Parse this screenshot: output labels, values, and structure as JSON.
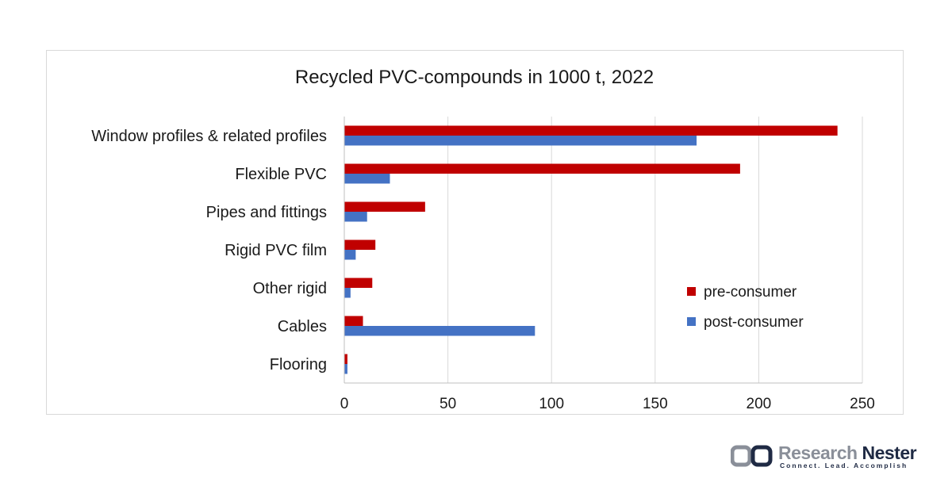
{
  "chart_data": {
    "type": "bar",
    "orientation": "horizontal",
    "title": "Recycled PVC-compounds in 1000 t, 2022",
    "xlabel": "",
    "ylabel": "",
    "xlim": [
      0,
      250
    ],
    "x_ticks": [
      "0",
      "50",
      "100",
      "150",
      "200",
      "250"
    ],
    "categories": [
      "Window profiles & related profiles",
      "Flexible PVC",
      "Pipes and fittings",
      "Rigid PVC film",
      "Other rigid",
      "Cables",
      "Flooring"
    ],
    "series": [
      {
        "name": "pre-consumer",
        "color": "#c00000",
        "values": [
          238,
          191,
          39,
          15,
          13.5,
          9,
          1.5
        ]
      },
      {
        "name": "post-consumer",
        "color": "#4472c4",
        "values": [
          170,
          22,
          11,
          5.5,
          3,
          92,
          1.5
        ]
      }
    ],
    "grid": "vertical",
    "legend_position": "right"
  },
  "brand": {
    "name_part1": "Research ",
    "name_part2": "Nester",
    "tagline": "Connect. Lead. Accomplish"
  }
}
